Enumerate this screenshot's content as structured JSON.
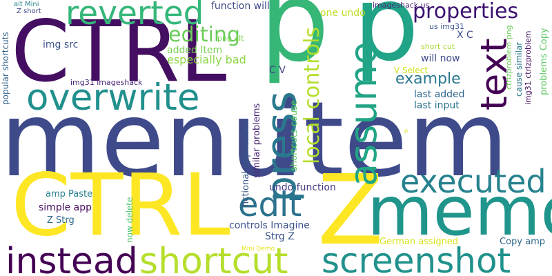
{
  "words": [
    {
      "id": "menu",
      "text": "menu",
      "color": "#3f4a8a"
    },
    {
      "id": "item",
      "text": "item",
      "color": "#3f4a8a"
    },
    {
      "id": "ctrl-top",
      "text": "CTRL",
      "color": "#440f62"
    },
    {
      "id": "ctrl-bottom",
      "text": "CTRL",
      "color": "#fde725"
    },
    {
      "id": "p-left",
      "text": "p",
      "color": "#36b677"
    },
    {
      "id": "p-right",
      "text": "p",
      "color": "#20a386"
    },
    {
      "id": "z",
      "text": "Z",
      "color": "#fde725"
    },
    {
      "id": "memo",
      "text": "memo",
      "color": "#1f958b"
    },
    {
      "id": "overwrite",
      "text": "overwrite",
      "color": "#21908d"
    },
    {
      "id": "reverted",
      "text": "reverted",
      "color": "#35b779"
    },
    {
      "id": "press",
      "text": "press",
      "color": "#2a788e"
    },
    {
      "id": "assume",
      "text": "assume",
      "color": "#21a585"
    },
    {
      "id": "text",
      "text": "text",
      "color": "#440154"
    },
    {
      "id": "properties",
      "text": "properties",
      "color": "#3b0f70"
    },
    {
      "id": "local-controls",
      "text": "local controls",
      "color": "#b4de2c"
    },
    {
      "id": "editing",
      "text": "editing",
      "color": "#6ccd5a"
    },
    {
      "id": "example",
      "text": "example",
      "color": "#2a788e"
    },
    {
      "id": "edit",
      "text": "edit",
      "color": "#2c728e"
    },
    {
      "id": "executed",
      "text": "executed",
      "color": "#26828e"
    },
    {
      "id": "instead",
      "text": "instead",
      "color": "#440154"
    },
    {
      "id": "shortcut",
      "text": "shortcut",
      "color": "#b5de2b"
    },
    {
      "id": "screenshot",
      "text": "screenshot",
      "color": "#21918c"
    },
    {
      "id": "img-src",
      "text": "img src",
      "color": "#3b528b"
    },
    {
      "id": "added-item",
      "text": "added Item",
      "color": "#7ad151"
    },
    {
      "id": "especially-bad",
      "text": "especially bad",
      "color": "#8bd646"
    },
    {
      "id": "function-will",
      "text": "function will",
      "color": "#3e4a89"
    },
    {
      "id": "png-alt",
      "text": "png alt",
      "color": "#7ad151"
    },
    {
      "id": "one-undo",
      "text": "one undo",
      "color": "#bddf26"
    },
    {
      "id": "imageshack-us",
      "text": "imageshack us",
      "color": "#482878"
    },
    {
      "id": "us-img31",
      "text": "us img31",
      "color": "#3b528b"
    },
    {
      "id": "short-cut",
      "text": "short cut",
      "color": "#a8db34"
    },
    {
      "id": "will-now",
      "text": "will now",
      "color": "#3e4989"
    },
    {
      "id": "last-added",
      "text": "last added",
      "color": "#31688e"
    },
    {
      "id": "last-input",
      "text": "last input",
      "color": "#2c728e"
    },
    {
      "id": "x-c",
      "text": "X C",
      "color": "#3e4a89"
    },
    {
      "id": "v-select",
      "text": "V Select",
      "color": "#d2e21b"
    },
    {
      "id": "c-v",
      "text": "C V",
      "color": "#414487"
    },
    {
      "id": "img31-imageshack",
      "text": "img31 imageshack",
      "color": "#482677"
    },
    {
      "id": "alt-mini",
      "text": "alt Mini",
      "color": "#26828e"
    },
    {
      "id": "z-short",
      "text": "Z short",
      "color": "#3f4788"
    },
    {
      "id": "popular-shortcuts",
      "text": "popular shortcuts",
      "color": "#33638d"
    },
    {
      "id": "similar-problems",
      "text": "similar problems",
      "color": "#482475"
    },
    {
      "id": "fictional-application",
      "text": "fictional application",
      "color": "#38588c"
    },
    {
      "id": "shortcuts-cause",
      "text": "shortcuts cause",
      "color": "#5ec962"
    },
    {
      "id": "undo-function",
      "text": "undo function",
      "color": "#443a83"
    },
    {
      "id": "amp-paste",
      "text": "amp Paste",
      "color": "#277f8e"
    },
    {
      "id": "simple-app",
      "text": "simple app",
      "color": "#460a5d"
    },
    {
      "id": "z-strg",
      "text": "Z Strg",
      "color": "#2f6b8e"
    },
    {
      "id": "now-delete",
      "text": "now delete",
      "color": "#4ac16d"
    },
    {
      "id": "controls-imagine",
      "text": "controls Imagine",
      "color": "#3b528b"
    },
    {
      "id": "strg-z",
      "text": "Strg Z",
      "color": "#3b528b"
    },
    {
      "id": "german-assigned",
      "text": "German assigned",
      "color": "#d8e219"
    },
    {
      "id": "copy-amp",
      "text": "Copy amp",
      "color": "#31688e"
    },
    {
      "id": "mini-demo",
      "text": "Mini Demo",
      "color": "#e5e419"
    },
    {
      "id": "ctrlzproblem-png",
      "text": "ctrlzproblem png",
      "color": "#6ece58"
    },
    {
      "id": "cause-similar",
      "text": "cause similar",
      "color": "#29798e"
    },
    {
      "id": "img31-ctrlzproblem",
      "text": "img31 ctrlzproblem",
      "color": "#471063"
    },
    {
      "id": "problems-copy",
      "text": "problems Copy",
      "color": "#5ec962"
    },
    {
      "id": "p-small",
      "text": "p",
      "color": "#d8e219"
    }
  ]
}
